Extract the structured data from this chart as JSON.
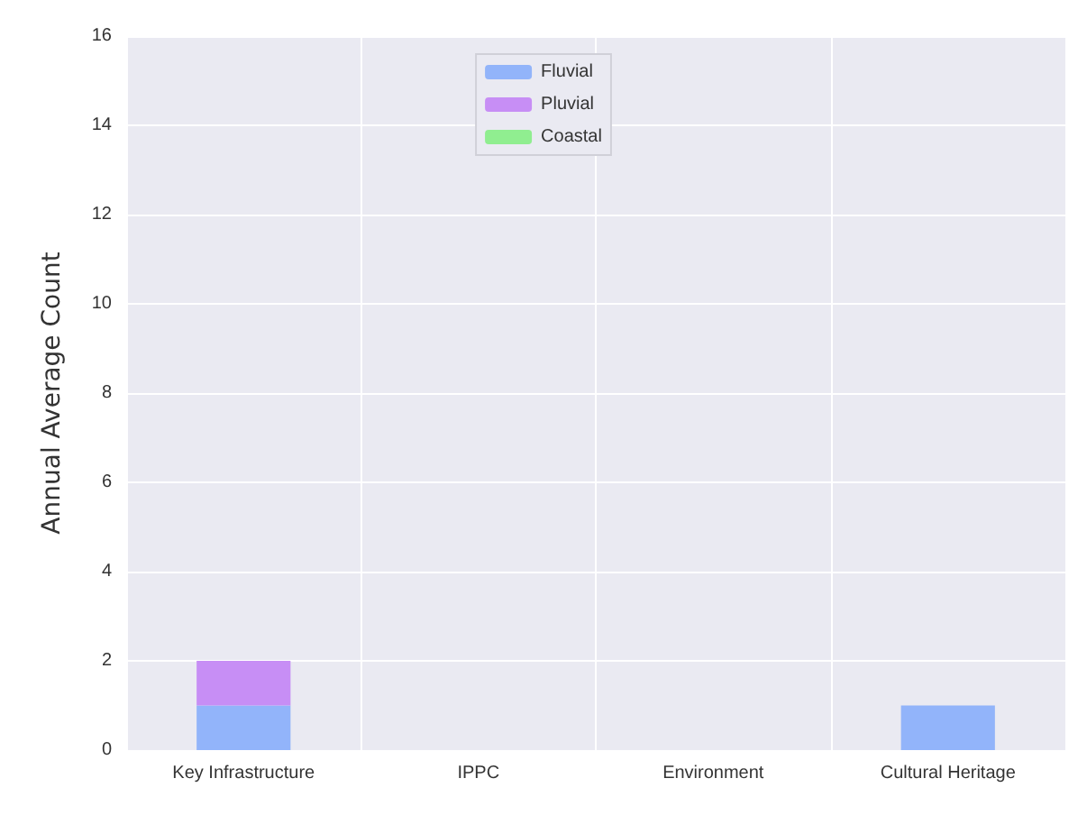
{
  "chart_data": {
    "type": "bar",
    "stacked": true,
    "ylabel": "Annual Average Count",
    "categories": [
      "Key Infrastructure",
      "IPPC",
      "Environment",
      "Cultural Heritage"
    ],
    "series": [
      {
        "name": "Fluvial",
        "color": "#92b4fa",
        "values": [
          1,
          0,
          0,
          1
        ]
      },
      {
        "name": "Pluvial",
        "color": "#c78ef5",
        "values": [
          1,
          0,
          0,
          0
        ]
      },
      {
        "name": "Coastal",
        "color": "#90ee90",
        "values": [
          0,
          0,
          0,
          0
        ]
      }
    ],
    "ylim": [
      0,
      16
    ],
    "yticks": [
      0,
      2,
      4,
      6,
      8,
      10,
      12,
      14,
      16
    ],
    "grid": true,
    "legend": "top"
  }
}
